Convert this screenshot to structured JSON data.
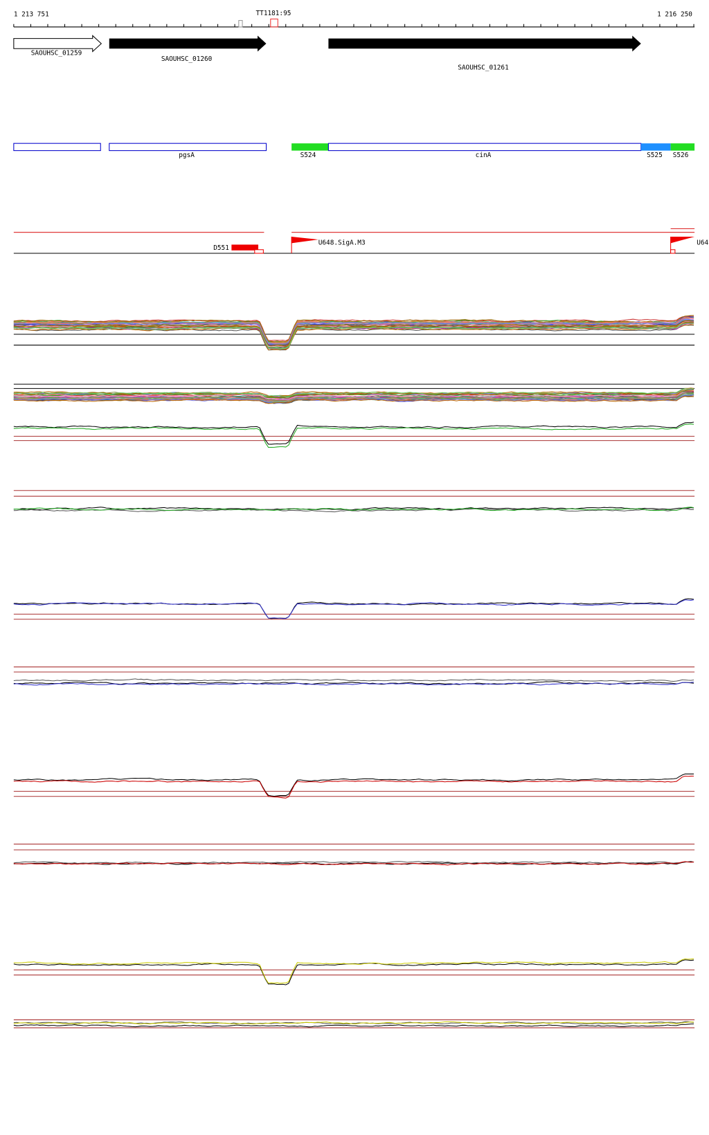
{
  "ruler": {
    "start": "1 213 751",
    "end": "1 216 250",
    "marker": "TT1181:95"
  },
  "genes": [
    {
      "label": "SAOUHSC_01259"
    },
    {
      "label": "SAOUHSC_01260"
    },
    {
      "label": "SAOUHSC_01261"
    }
  ],
  "features": [
    {
      "label": "pgsA"
    },
    {
      "label": "S524"
    },
    {
      "label": "cinA"
    },
    {
      "label": "S525"
    },
    {
      "label": "S526"
    }
  ],
  "promoters": [
    {
      "label": "D551"
    },
    {
      "label": "U648.SigA.M3"
    },
    {
      "label": "U64"
    }
  ]
}
